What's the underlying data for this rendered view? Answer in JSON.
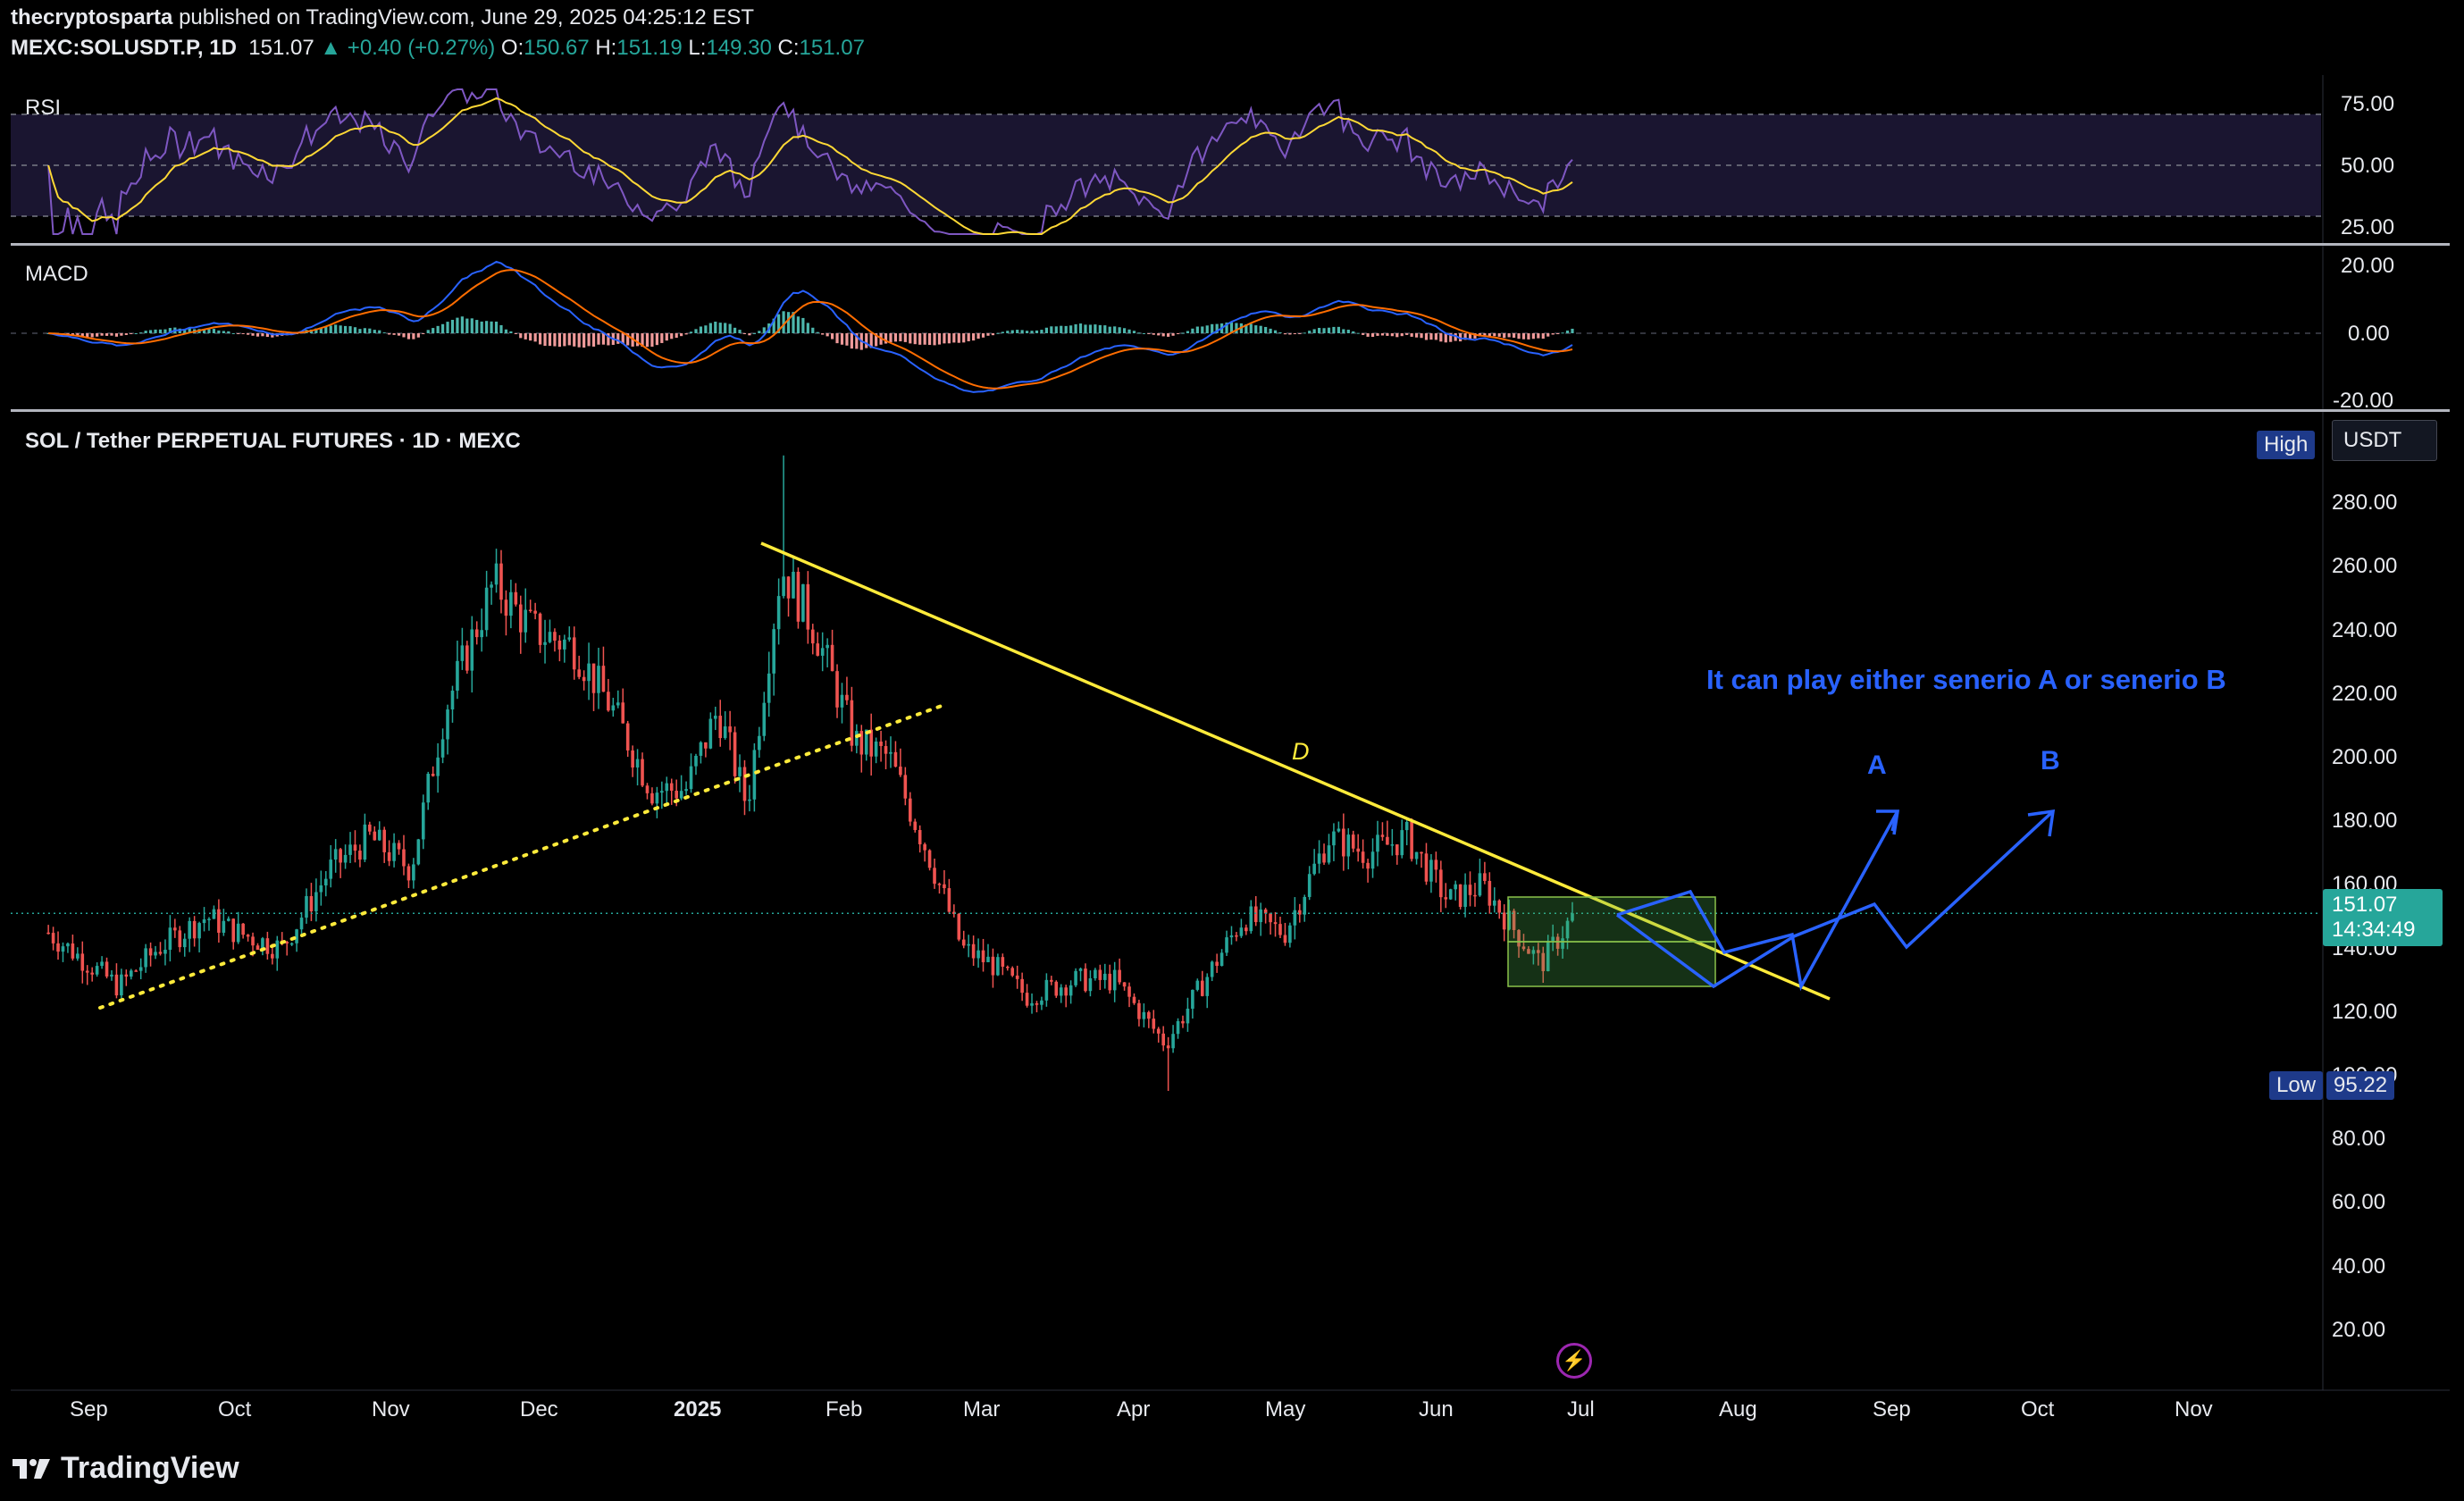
{
  "header": {
    "author": "thecryptosparta",
    "published_text": "published on TradingView.com, June 29, 2025 04:25:12 EST",
    "symbol": "MEXC:SOLUSDT.P, 1D",
    "last": "151.07",
    "change": "+0.40 (+0.27%)",
    "o_label": "O:",
    "o": "150.67",
    "h_label": "H:",
    "h": "151.19",
    "l_label": "L:",
    "l": "149.30",
    "c_label": "C:",
    "c": "151.07"
  },
  "panes": {
    "rsi_label": "RSI",
    "macd_label": "MACD",
    "main_label": "SOL / Tether PERPETUAL FUTURES · 1D · MEXC"
  },
  "tags": {
    "high_label": "High",
    "currency": "USDT",
    "low_label": "Low",
    "low_value": "95.22",
    "price_value": "151.07",
    "countdown": "14:34:49"
  },
  "annotations": {
    "scenario_text": "It can play either senerio A or senerio B",
    "a_label": "A",
    "b_label": "B",
    "d_label": "D"
  },
  "colors": {
    "up": "#26a69a",
    "down": "#ef5350",
    "trendline": "#ffeb3b",
    "projection": "#2962ff",
    "rsi_line": "#7e57c2",
    "rsi_ma": "#fdd835",
    "macd_line": "#2962ff",
    "signal_line": "#ff6d00",
    "price_tag": "#26a69a",
    "label_tag": "#1e3a8a"
  },
  "footer": {
    "brand": "TradingView"
  },
  "chart_data": [
    {
      "type": "candlestick",
      "title": "SOL / Tether PERPETUAL FUTURES · 1D · MEXC",
      "x_ticks": [
        "Sep",
        "Oct",
        "Nov",
        "Dec",
        "2025",
        "Feb",
        "Mar",
        "Apr",
        "May",
        "Jun",
        "Jul",
        "Aug",
        "Sep",
        "Oct",
        "Nov"
      ],
      "y_ticks": [
        "280.00",
        "260.00",
        "240.00",
        "220.00",
        "200.00",
        "180.00",
        "160.00",
        "140.00",
        "120.00",
        "100.00",
        "80.00",
        "60.00",
        "40.00",
        "20.00"
      ],
      "ylim": [
        0,
        290
      ],
      "approx_closes": [
        [
          "Aug 23",
          145
        ],
        [
          "Sep 1",
          135
        ],
        [
          "Sep 7",
          128
        ],
        [
          "Sep 15",
          140
        ],
        [
          "Sep 25",
          150
        ],
        [
          "Oct 1",
          145
        ],
        [
          "Oct 10",
          140
        ],
        [
          "Oct 20",
          165
        ],
        [
          "Oct 28",
          175
        ],
        [
          "Nov 5",
          165
        ],
        [
          "Nov 12",
          215
        ],
        [
          "Nov 22",
          255
        ],
        [
          "Nov 30",
          240
        ],
        [
          "Dec 8",
          235
        ],
        [
          "Dec 16",
          215
        ],
        [
          "Dec 24",
          190
        ],
        [
          "Dec 31",
          190
        ],
        [
          "Jan 6",
          215
        ],
        [
          "Jan 12",
          185
        ],
        [
          "Jan 19",
          260
        ],
        [
          "Jan 26",
          240
        ],
        [
          "Feb 3",
          205
        ],
        [
          "Feb 10",
          200
        ],
        [
          "Feb 18",
          170
        ],
        [
          "Feb 25",
          140
        ],
        [
          "Mar 3",
          135
        ],
        [
          "Mar 10",
          125
        ],
        [
          "Mar 20",
          130
        ],
        [
          "Mar 28",
          130
        ],
        [
          "Apr 7",
          110
        ],
        [
          "Apr 15",
          130
        ],
        [
          "Apr 23",
          150
        ],
        [
          "May 1",
          145
        ],
        [
          "May 10",
          175
        ],
        [
          "May 18",
          170
        ],
        [
          "May 26",
          175
        ],
        [
          "Jun 3",
          155
        ],
        [
          "Jun 10",
          160
        ],
        [
          "Jun 17",
          145
        ],
        [
          "Jun 22",
          135
        ],
        [
          "Jun 29",
          151.07
        ]
      ],
      "high": 295,
      "low": 95.22,
      "last": 151.07
    },
    {
      "type": "line",
      "title": "RSI",
      "y_ticks": [
        "75.00",
        "50.00",
        "25.00"
      ],
      "ylim": [
        20,
        80
      ],
      "levels": [
        70,
        50,
        30
      ]
    },
    {
      "type": "line",
      "title": "MACD",
      "y_ticks": [
        "20.00",
        "0.00",
        "-20.00"
      ],
      "ylim": [
        -22,
        22
      ]
    }
  ]
}
